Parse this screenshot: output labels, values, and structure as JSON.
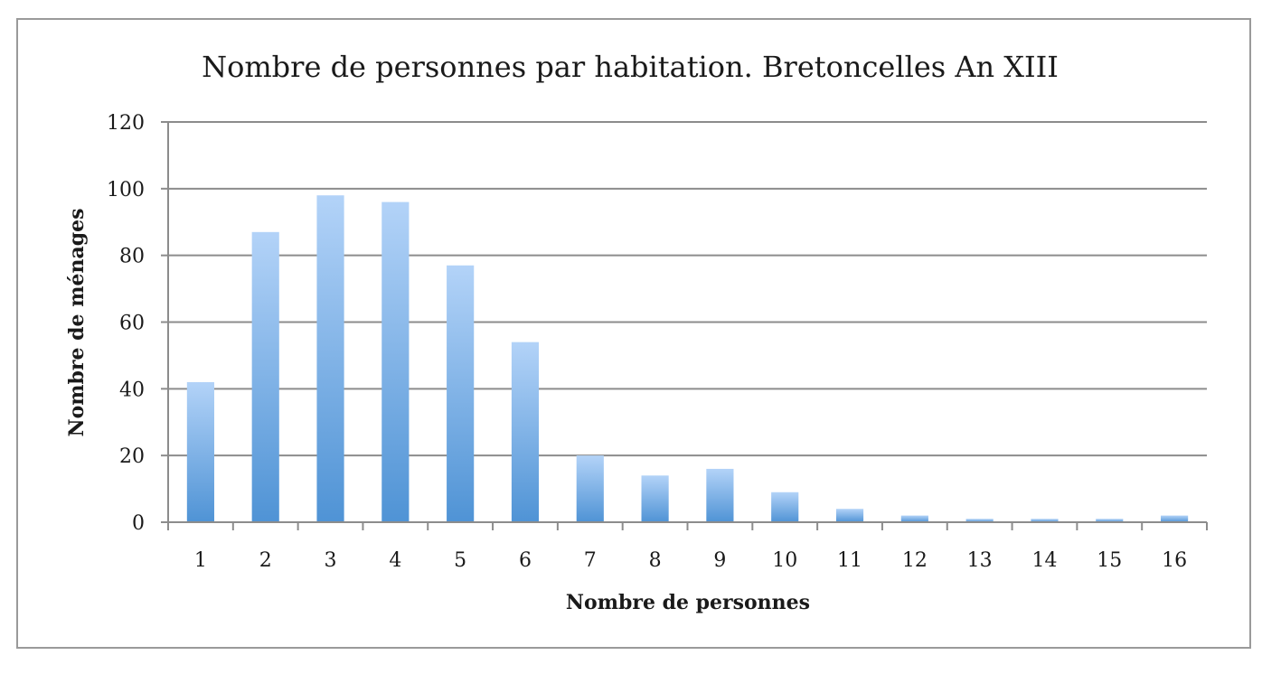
{
  "chart_data": {
    "type": "bar",
    "title": "Nombre de personnes par habitation. Bretoncelles An XIII",
    "xlabel": "Nombre de personnes",
    "ylabel": "Nombre de ménages",
    "categories": [
      "1",
      "2",
      "3",
      "4",
      "5",
      "6",
      "7",
      "8",
      "9",
      "10",
      "11",
      "12",
      "13",
      "14",
      "15",
      "16"
    ],
    "values": [
      42,
      87,
      98,
      96,
      77,
      54,
      20,
      14,
      16,
      9,
      4,
      2,
      1,
      1,
      1,
      2
    ],
    "ylim": [
      0,
      120
    ],
    "yticks": [
      "0",
      "20",
      "40",
      "60",
      "80",
      "100",
      "120"
    ],
    "grid": true,
    "legend": "none",
    "colors": {
      "bar_top": "#b3d3f8",
      "bar_bottom": "#4f93d5"
    }
  }
}
